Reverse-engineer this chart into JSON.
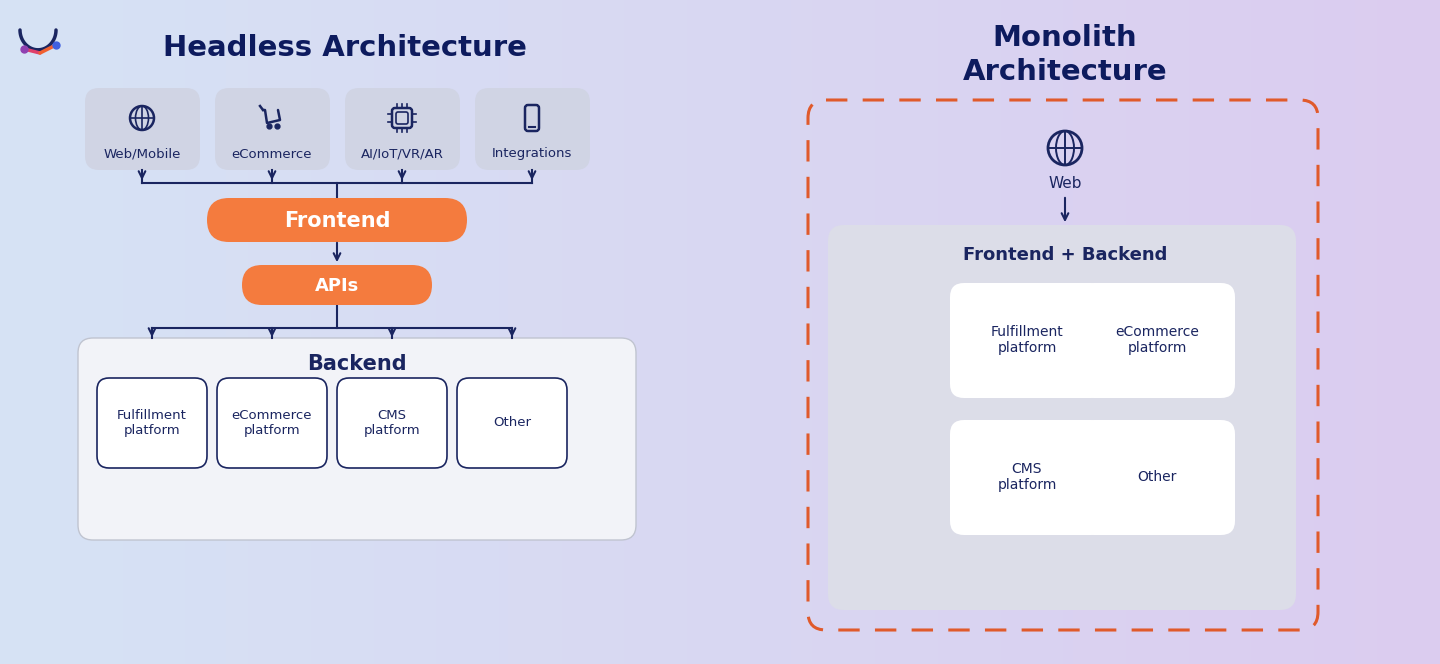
{
  "title_headless": "Headless Architecture",
  "title_monolith": "Monolith\nArchitecture",
  "title_color": "#0d1b5e",
  "orange_color": "#f47b3e",
  "navy": "#1a2560",
  "card_bg_top": "#d0d4e4",
  "card_bg_backend_outer": "#f2f3f8",
  "card_bg_backend_inner": "#ffffff",
  "card_bg_monolith_fb": "#dcdde8",
  "card_bg_monolith_inner": "#ffffff",
  "border_color_backend": "#c0c4d0",
  "border_color_inner": "#1a2560",
  "dashed_border": "#e05a2b",
  "channel_labels": [
    "Web/Mobile",
    "eCommerce",
    "AI/IoT/VR/AR",
    "Integrations"
  ],
  "backend_labels": [
    "Fulfillment\nplatform",
    "eCommerce\nplatform",
    "CMS\nplatform",
    "Other"
  ],
  "monolith_labels": [
    "Fulfillment\nplatform",
    "eCommerce\nplatform",
    "CMS\nplatform",
    "Other"
  ]
}
